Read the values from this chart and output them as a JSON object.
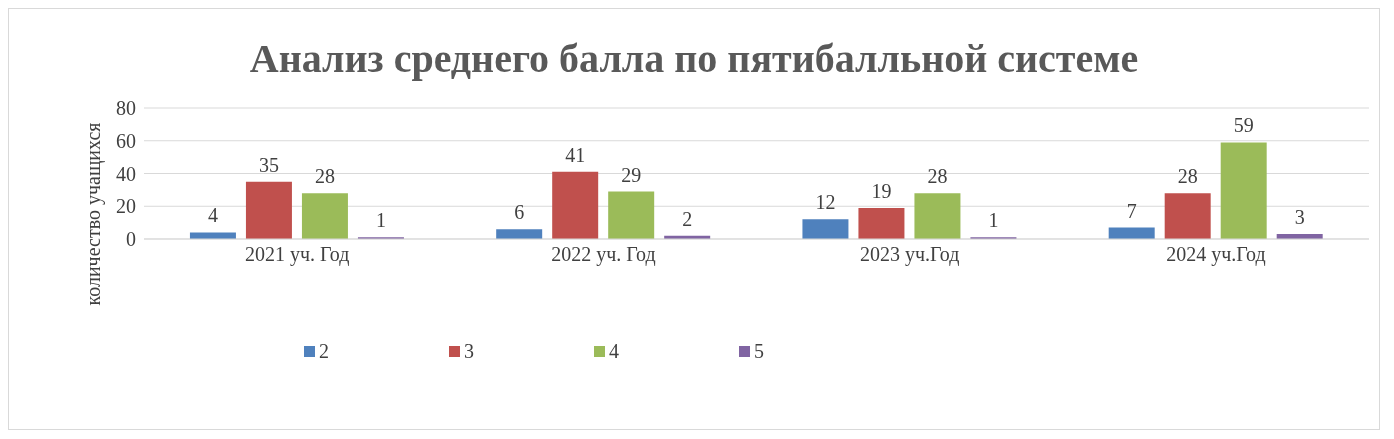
{
  "chart_data": {
    "type": "bar",
    "title": "Анализ среднего балла по пятибалльной системе",
    "ylabel": "количество учащихся",
    "categories": [
      "2021 уч. Год",
      "2022 уч. Год",
      "2023 уч.Год",
      "2024 уч.Год"
    ],
    "series": [
      {
        "name": "2",
        "color": "#4f81bd",
        "values": [
          4,
          6,
          12,
          7
        ]
      },
      {
        "name": "3",
        "color": "#c0504d",
        "values": [
          35,
          41,
          19,
          28
        ]
      },
      {
        "name": "4",
        "color": "#9bbb59",
        "values": [
          28,
          29,
          28,
          59
        ]
      },
      {
        "name": "5",
        "color": "#8064a2",
        "values": [
          1,
          2,
          1,
          3
        ]
      }
    ],
    "ylim": [
      0,
      80
    ],
    "yticks": [
      0,
      20,
      40,
      60,
      80
    ],
    "grid": "y",
    "legend": "bottom",
    "data_labels": true
  }
}
